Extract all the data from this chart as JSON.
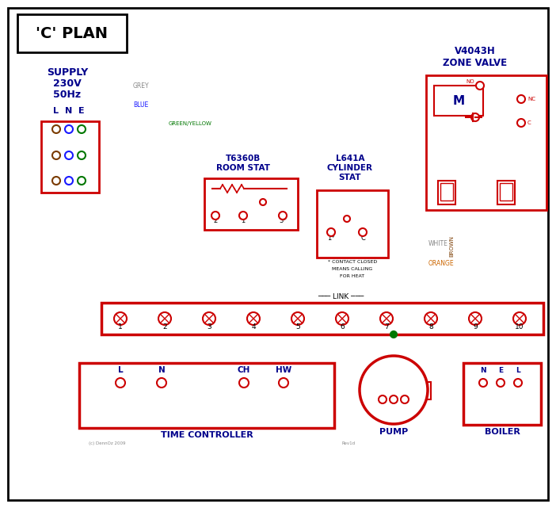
{
  "bg": "#ffffff",
  "black": "#000000",
  "red": "#cc0000",
  "blue": "#1a1aff",
  "green": "#007700",
  "grey": "#888888",
  "brown": "#7a3b00",
  "orange": "#cc6600",
  "darkblue": "#00008B",
  "figw": 7.02,
  "figh": 6.41,
  "dpi": 100,
  "title": "'C' PLAN",
  "supply_lines": [
    "SUPPLY",
    "230V",
    "50Hz"
  ],
  "zone_valve_lines": [
    "V4043H",
    "ZONE VALVE"
  ],
  "room_stat_lines": [
    "T6360B",
    "ROOM STAT"
  ],
  "cyl_stat_lines": [
    "L641A",
    "CYLINDER",
    "STAT"
  ],
  "tc_label": "TIME CONTROLLER",
  "pump_label": "PUMP",
  "boiler_label": "BOILER",
  "term_labels": [
    "1",
    "2",
    "3",
    "4",
    "5",
    "6",
    "7",
    "8",
    "9",
    "10"
  ],
  "wire_names": [
    "GREY",
    "BLUE",
    "GREEN/YELLOW",
    "BROWN",
    "WHITE",
    "ORANGE"
  ],
  "link_label": "LINK",
  "copyright": "(c) DennOz 2009",
  "rev": "Rev1d",
  "note_lines": [
    "* CONTACT CLOSED",
    "MEANS CALLING",
    "FOR HEAT"
  ]
}
